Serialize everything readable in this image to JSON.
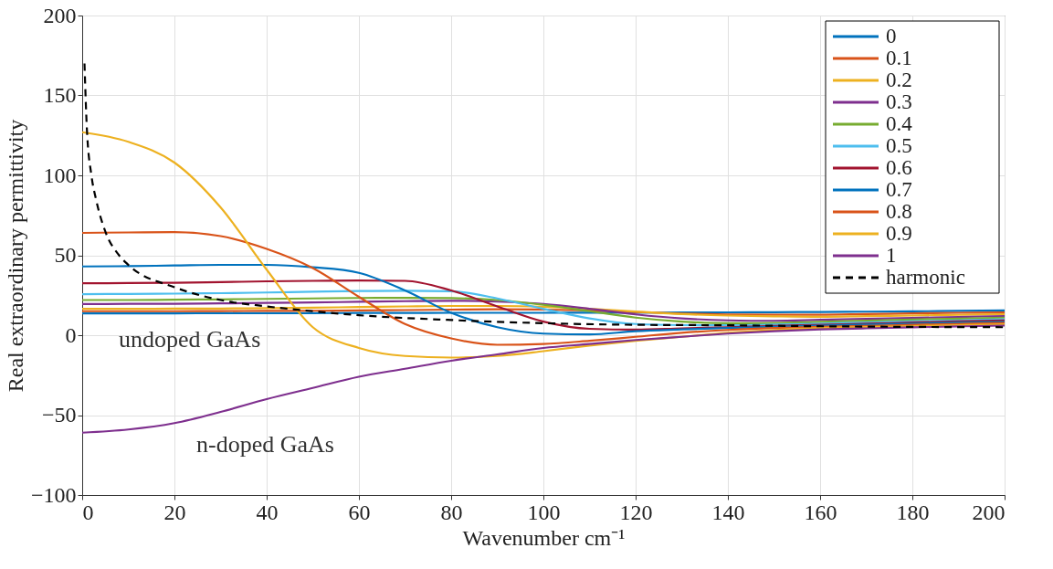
{
  "chart_data": {
    "type": "line",
    "xlabel": "Wavenumber cm⁻¹",
    "ylabel": "Real extraordinary permittivity",
    "xlim": [
      0,
      200
    ],
    "xticks": [
      0,
      20,
      40,
      60,
      80,
      100,
      120,
      140,
      160,
      180,
      200
    ],
    "ylim": [
      -100,
      200
    ],
    "yticks": [
      {
        "value": -100,
        "label": "−100"
      },
      {
        "value": -50,
        "label": "−50"
      },
      0,
      50,
      100,
      150,
      200
    ],
    "grid": true,
    "legend": "top right",
    "line_style": "solid",
    "annotations": [
      "undoped GaAs",
      "n-doped GaAs"
    ],
    "series": [
      {
        "name": "0",
        "color": "#0072bd",
        "x": [
          0,
          10,
          20,
          30,
          40,
          50,
          60,
          70,
          80,
          90,
          100,
          110,
          120,
          130,
          140,
          150,
          160,
          170,
          180,
          190,
          200
        ],
        "values": [
          13.7,
          13.7,
          13.7,
          13.8,
          13.8,
          13.8,
          13.9,
          13.9,
          14,
          14,
          14,
          14.1,
          14.1,
          14.2,
          14.3,
          14.4,
          14.5,
          14.7,
          14.9,
          15.2,
          15.5
        ]
      },
      {
        "name": "0.1",
        "color": "#d95319",
        "x": [
          0,
          10,
          20,
          30,
          40,
          50,
          60,
          70,
          80,
          90,
          100,
          110,
          120,
          130,
          140,
          150,
          160,
          170,
          180,
          190,
          200
        ],
        "values": [
          15,
          15,
          15,
          15.1,
          15.2,
          15.3,
          15.5,
          15.7,
          16,
          16.2,
          16,
          15.5,
          14.5,
          13.5,
          13,
          12.8,
          12.8,
          13.2,
          13.6,
          14,
          14.3
        ]
      },
      {
        "name": "0.2",
        "color": "#edb120",
        "x": [
          0,
          10,
          20,
          30,
          40,
          50,
          60,
          70,
          80,
          90,
          100,
          110,
          120,
          130,
          140,
          150,
          160,
          170,
          180,
          190,
          200
        ],
        "values": [
          16.5,
          16.5,
          16.6,
          16.7,
          16.9,
          17.2,
          17.6,
          18,
          18.3,
          18.3,
          17.8,
          16.5,
          14.8,
          13.2,
          12.3,
          11.8,
          11.5,
          11.9,
          12.3,
          12.7,
          13.1
        ]
      },
      {
        "name": "0.3",
        "color": "#7e2f8e",
        "x": [
          0,
          10,
          20,
          30,
          40,
          50,
          60,
          70,
          80,
          90,
          100,
          110,
          120,
          130,
          140,
          150,
          160,
          170,
          180,
          190,
          200
        ],
        "values": [
          19.5,
          19.6,
          19.7,
          19.9,
          20.2,
          20.5,
          20.9,
          21.3,
          21.5,
          21,
          19.5,
          16.5,
          13,
          10.5,
          9.3,
          9,
          9.6,
          10.2,
          10.8,
          11.4,
          12
        ]
      },
      {
        "name": "0.4",
        "color": "#77ac30",
        "x": [
          0,
          10,
          20,
          30,
          40,
          50,
          60,
          70,
          80,
          90,
          100,
          110,
          120,
          130,
          140,
          150,
          160,
          170,
          180,
          190,
          200
        ],
        "values": [
          22,
          22,
          22.2,
          22.4,
          22.7,
          23,
          23.3,
          23.4,
          23.2,
          22,
          19,
          15,
          11,
          8.5,
          7.5,
          7.6,
          8.4,
          9.1,
          9.8,
          10.4,
          11
        ]
      },
      {
        "name": "0.5",
        "color": "#4dbeee",
        "x": [
          0,
          10,
          20,
          30,
          40,
          50,
          60,
          70,
          80,
          90,
          100,
          110,
          120,
          130,
          140,
          150,
          160,
          170,
          180,
          190,
          200
        ],
        "values": [
          25.7,
          25.8,
          26,
          26.3,
          26.7,
          27.2,
          27.6,
          27.8,
          27.5,
          23,
          16.5,
          10.5,
          7,
          6.3,
          6.2,
          6.6,
          7.3,
          7.9,
          8.6,
          9.3,
          10
        ]
      },
      {
        "name": "0.6",
        "color": "#a2142f",
        "x": [
          0,
          10,
          20,
          30,
          40,
          50,
          60,
          70,
          80,
          90,
          100,
          110,
          120,
          130,
          140,
          150,
          160,
          170,
          180,
          190,
          200
        ],
        "values": [
          32.5,
          32.6,
          32.8,
          33.2,
          33.7,
          34,
          34.2,
          34,
          28,
          18,
          8.5,
          4,
          3.5,
          4.3,
          5,
          5.8,
          6.5,
          7.2,
          7.9,
          8.6,
          9.2
        ]
      },
      {
        "name": "0.7",
        "color": "#0072bd",
        "x": [
          0,
          10,
          20,
          30,
          40,
          50,
          60,
          70,
          80,
          90,
          100,
          110,
          120,
          130,
          140,
          150,
          160,
          170,
          180,
          190,
          200
        ],
        "values": [
          43,
          43.2,
          43.6,
          44,
          44,
          42.5,
          39,
          28,
          14,
          5,
          1,
          0.5,
          2.5,
          3.6,
          4.5,
          5.2,
          6,
          6.7,
          7.3,
          7.9,
          8.4
        ]
      },
      {
        "name": "0.8",
        "color": "#d95319",
        "x": [
          0,
          10,
          20,
          30,
          40,
          50,
          60,
          70,
          80,
          90,
          100,
          110,
          120,
          130,
          140,
          150,
          160,
          170,
          180,
          190,
          200
        ],
        "values": [
          64,
          64.3,
          64.5,
          62,
          54,
          42,
          24,
          7,
          -2,
          -6,
          -5.5,
          -3.5,
          -1,
          1.5,
          3.3,
          4.5,
          5.2,
          5.8,
          6.5,
          7.1,
          7.6
        ]
      },
      {
        "name": "0.9",
        "color": "#edb120",
        "x": [
          0,
          10,
          20,
          30,
          40,
          50,
          60,
          70,
          80,
          90,
          100,
          110,
          120,
          130,
          140,
          150,
          160,
          170,
          180,
          190,
          200
        ],
        "values": [
          127,
          121,
          108,
          80,
          41,
          5,
          -8,
          -13,
          -14,
          -13,
          -10,
          -6.5,
          -3.5,
          -1,
          1.5,
          3.3,
          4.5,
          5.1,
          5.7,
          6.3,
          6.8
        ]
      },
      {
        "name": "1",
        "color": "#7e2f8e",
        "x": [
          0,
          10,
          20,
          30,
          40,
          50,
          60,
          70,
          80,
          90,
          100,
          110,
          120,
          130,
          140,
          150,
          160,
          170,
          180,
          190,
          200
        ],
        "values": [
          -61,
          -59,
          -55,
          -48,
          -40,
          -33,
          -26,
          -21,
          -16,
          -12,
          -8,
          -5.5,
          -3,
          -1,
          1,
          2.5,
          3.6,
          4.3,
          4.9,
          5.5,
          6
        ]
      },
      {
        "name": "harmonic",
        "color": "#000000",
        "line_style": "dashed",
        "x": [
          0.5,
          1,
          2,
          3,
          5,
          8,
          10,
          20,
          30,
          40,
          50,
          60,
          80,
          100,
          120,
          140,
          160,
          180,
          200
        ],
        "values": [
          170,
          130,
          100,
          85,
          65,
          50,
          44,
          30,
          22,
          18,
          15,
          12.5,
          9.5,
          7.5,
          6.5,
          6.2,
          5.6,
          5.2,
          5
        ]
      }
    ]
  }
}
